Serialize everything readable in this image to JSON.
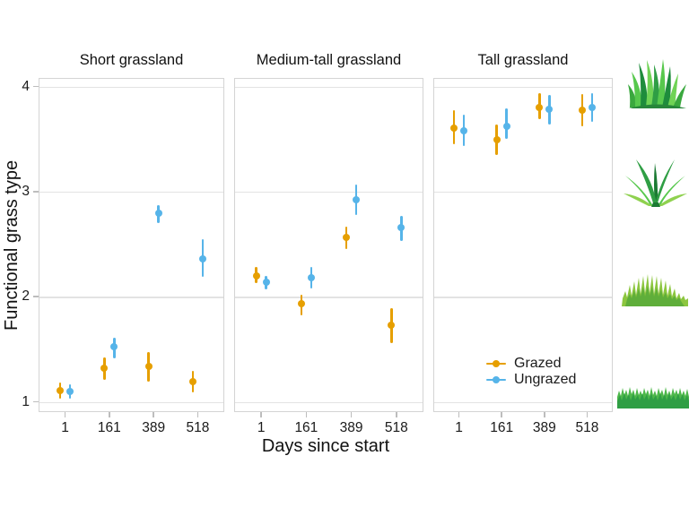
{
  "figure": {
    "y_axis_title": "Functional grass type",
    "x_axis_title": "Days since start",
    "x_tick_labels": [
      "1",
      "161",
      "389",
      "518"
    ],
    "y_tick_labels": [
      "4",
      "3",
      "2",
      "1"
    ]
  },
  "legend": {
    "items": [
      {
        "label": "Grazed",
        "color": "#E69F00"
      },
      {
        "label": "Ungrazed",
        "color": "#56B4E9"
      }
    ]
  },
  "grass_icons": [
    {
      "name": "tall-grass",
      "aligned_value": 4
    },
    {
      "name": "medium-tall-grass",
      "aligned_value": 3
    },
    {
      "name": "medium-grass",
      "aligned_value": 2
    },
    {
      "name": "short-grass",
      "aligned_value": 1
    }
  ],
  "chart_data": {
    "type": "pointrange",
    "title": "",
    "xlabel": "Days since start",
    "ylabel": "Functional grass type",
    "x_categories": [
      1,
      161,
      389,
      518
    ],
    "y_ticks": [
      1,
      2,
      3,
      4
    ],
    "ylim": [
      0.85,
      4.1
    ],
    "grid": "horizontal major gridlines only",
    "legend_position": "inside bottom-right of Tall grassland panel",
    "facets": [
      {
        "title": "Short grassland",
        "series": [
          {
            "name": "Grazed",
            "color": "#E69F00",
            "mean": [
              1.11,
              1.32,
              1.34,
              1.19
            ],
            "lower": [
              1.03,
              1.21,
              1.19,
              1.09
            ],
            "upper": [
              1.18,
              1.42,
              1.47,
              1.29
            ]
          },
          {
            "name": "Ungrazed",
            "color": "#56B4E9",
            "mean": [
              1.1,
              1.52,
              2.79,
              2.36
            ],
            "lower": [
              1.03,
              1.41,
              2.7,
              2.19
            ],
            "upper": [
              1.17,
              1.61,
              2.87,
              2.55
            ]
          }
        ]
      },
      {
        "title": "Medium-tall grassland",
        "series": [
          {
            "name": "Grazed",
            "color": "#E69F00",
            "mean": [
              2.2,
              1.93,
              2.56,
              1.73
            ],
            "lower": [
              2.13,
              1.82,
              2.45,
              1.56
            ],
            "upper": [
              2.28,
              2.02,
              2.67,
              1.89
            ]
          },
          {
            "name": "Ungrazed",
            "color": "#56B4E9",
            "mean": [
              2.14,
              2.18,
              2.92,
              2.66
            ],
            "lower": [
              2.07,
              2.08,
              2.78,
              2.53
            ],
            "upper": [
              2.2,
              2.28,
              3.07,
              2.77
            ]
          }
        ]
      },
      {
        "title": "Tall grassland",
        "series": [
          {
            "name": "Grazed",
            "color": "#E69F00",
            "mean": [
              3.6,
              3.49,
              3.8,
              3.77
            ],
            "lower": [
              3.45,
              3.35,
              3.69,
              3.62
            ],
            "upper": [
              3.77,
              3.64,
              3.94,
              3.93
            ]
          },
          {
            "name": "Ungrazed",
            "color": "#56B4E9",
            "mean": [
              3.58,
              3.62,
              3.78,
              3.8
            ],
            "lower": [
              3.43,
              3.5,
              3.64,
              3.66
            ],
            "upper": [
              3.73,
              3.79,
              3.92,
              3.94
            ]
          }
        ]
      }
    ]
  }
}
